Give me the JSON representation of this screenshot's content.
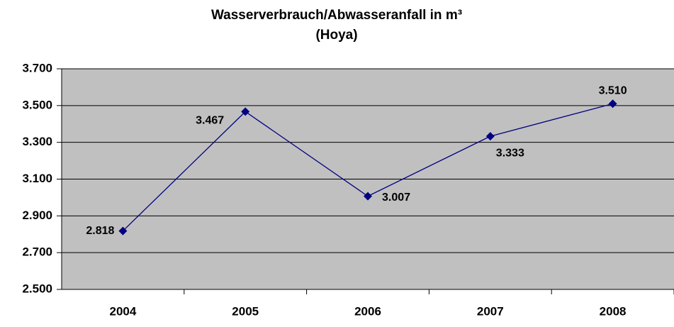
{
  "chart_data": {
    "type": "line",
    "title": [
      "Wasserverbrauch/Abwasseranfall in m³",
      "(Hoya)"
    ],
    "categories": [
      "2004",
      "2005",
      "2006",
      "2007",
      "2008"
    ],
    "values": [
      2818,
      3467,
      3007,
      3333,
      3510
    ],
    "value_labels": [
      "2.818",
      "3.467",
      "3.007",
      "3.333",
      "3.510"
    ],
    "color": "#000080",
    "ylim": [
      2500,
      3700
    ],
    "yticks": [
      {
        "value": 2500,
        "label": "2.500"
      },
      {
        "value": 2700,
        "label": "2.700"
      },
      {
        "value": 2900,
        "label": "2.900"
      },
      {
        "value": 3100,
        "label": "3.100"
      },
      {
        "value": 3300,
        "label": "3.300"
      },
      {
        "value": 3500,
        "label": "3.500"
      },
      {
        "value": 3700,
        "label": "3.700"
      }
    ],
    "grid": true
  }
}
